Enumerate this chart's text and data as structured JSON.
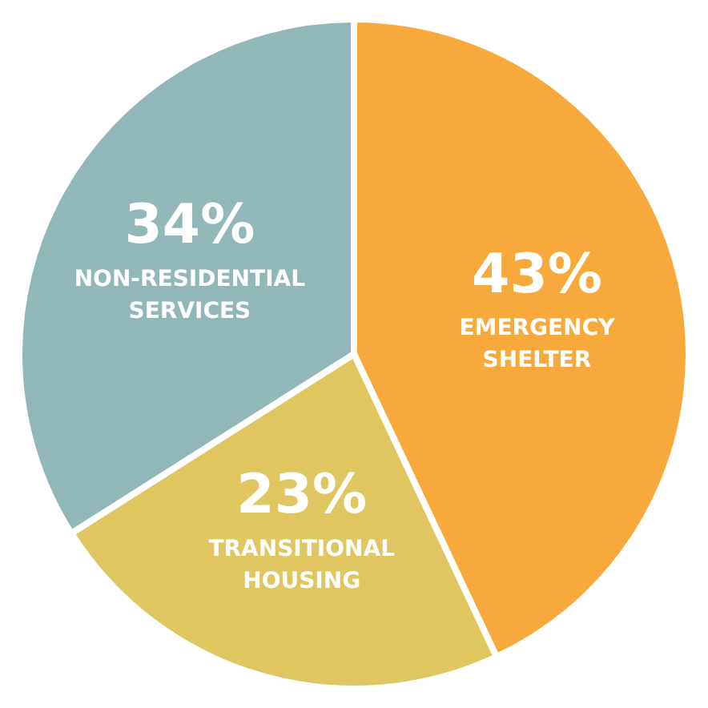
{
  "chart_data": {
    "type": "pie",
    "categories": [
      "EMERGENCY SHELTER",
      "TRANSITIONAL HOUSING",
      "NON-RESIDENTIAL SERVICES"
    ],
    "values": [
      43,
      23,
      34
    ],
    "colors": [
      "#f7a93b",
      "#dfc660",
      "#91b7b9"
    ],
    "value_labels": [
      "43%",
      "23%",
      "34%"
    ],
    "legend": false
  }
}
